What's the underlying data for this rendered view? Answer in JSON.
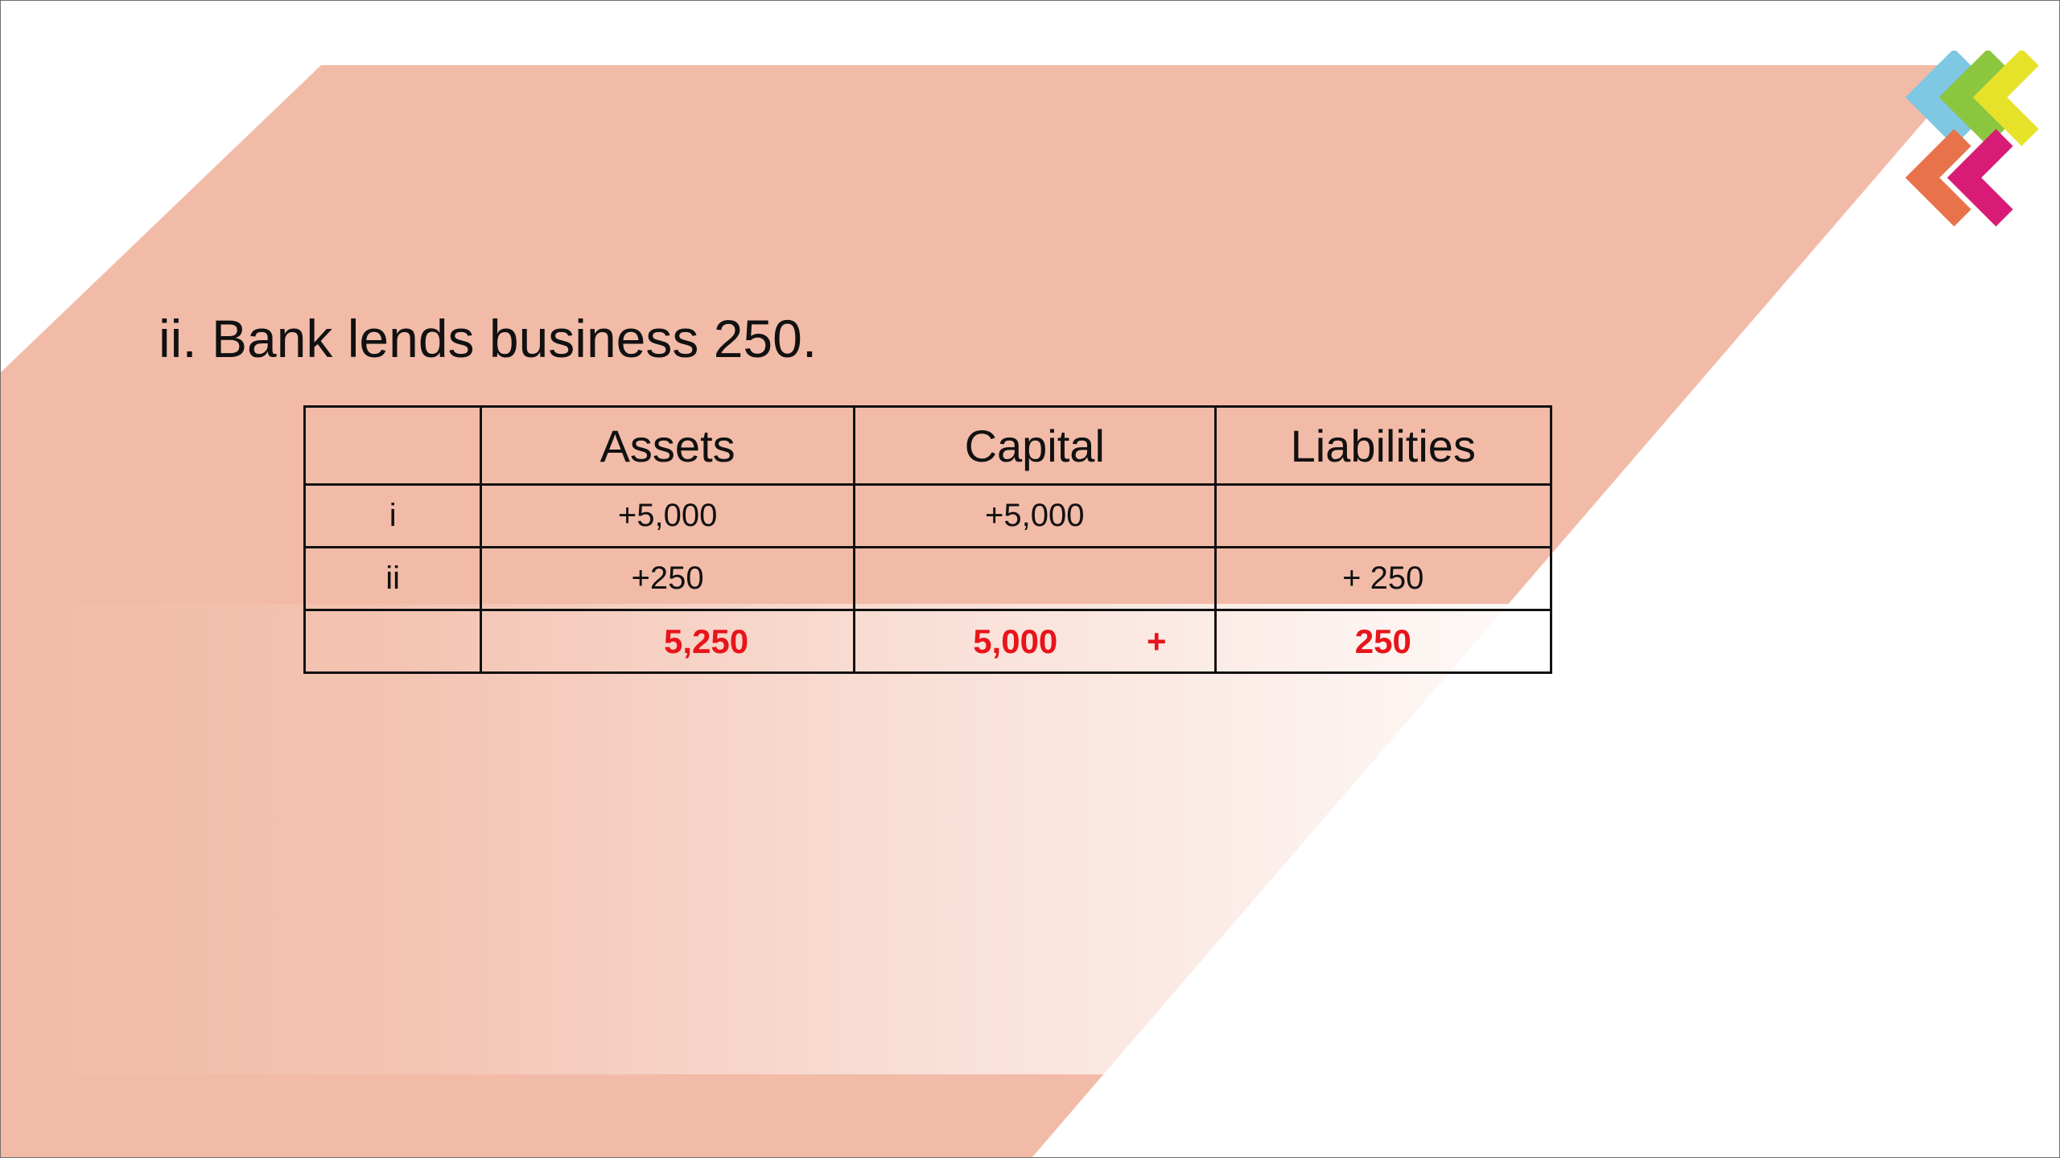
{
  "slide": {
    "title": "ii. Bank lends business 250."
  },
  "table": {
    "headers": [
      "",
      "Assets",
      "Capital",
      "Liabilities"
    ],
    "rows": [
      {
        "label": "i",
        "assets": "+5,000",
        "capital": "+5,000",
        "liabilities": ""
      },
      {
        "label": "ii",
        "assets": "+250",
        "capital": "",
        "liabilities": "+ 250"
      }
    ],
    "totals": {
      "label": "",
      "assets": "5,250",
      "capital": "5,000",
      "operator": "+",
      "liabilities": "250"
    }
  },
  "colors": {
    "band": "#f2bba8",
    "total_text": "#e8141b",
    "logo": [
      "#7ec8e3",
      "#8cc63f",
      "#e6e22a",
      "#e8734a",
      "#d81b74"
    ]
  },
  "icons": [
    "chevron-logo-icon"
  ]
}
